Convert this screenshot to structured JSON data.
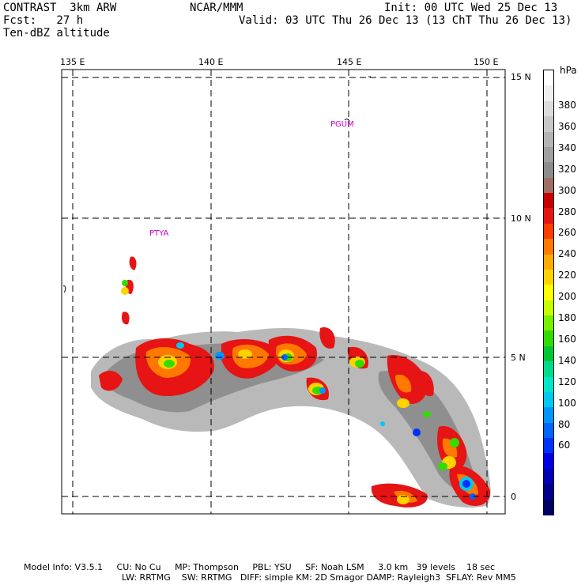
{
  "header": {
    "model": "CONTRAST  3km ARW",
    "fcst": "Fcst:   27 h",
    "field": "Ten-dBZ altitude",
    "org": "NCAR/MMM",
    "init": "Init: 00 UTC Wed 25 Dec 13",
    "valid": "Valid: 03 UTC Thu 26 Dec 13 (13 ChT Thu 26 Dec 13)"
  },
  "map": {
    "lon_labels": [
      "135 E",
      "140 E",
      "145 E",
      "150 E"
    ],
    "lat_labels": [
      "15 N",
      "10 N",
      "5 N",
      "0"
    ],
    "stations": [
      "PGUM",
      "PTYA"
    ]
  },
  "colorbar": {
    "unit": "hPa",
    "labels": [
      "380",
      "360",
      "340",
      "320",
      "300",
      "280",
      "260",
      "240",
      "220",
      "200",
      "180",
      "160",
      "140",
      "120",
      "100",
      "80",
      "60"
    ],
    "colors": [
      "#ffffff",
      "#eeeeee",
      "#dcdcdc",
      "#c8c8c8",
      "#b4b4b4",
      "#a0a0a0",
      "#8c8c8c",
      "#a06e64",
      "#c80000",
      "#e61414",
      "#ff3c00",
      "#ff7800",
      "#ffaa00",
      "#ffd200",
      "#ffff00",
      "#c8ff00",
      "#78f000",
      "#32dc00",
      "#00c832",
      "#00dc8c",
      "#00e6c8",
      "#00c8f0",
      "#0096ff",
      "#0064ff",
      "#0032ff",
      "#0000e6",
      "#0000b4",
      "#00008c",
      "#000064"
    ]
  },
  "footer": {
    "line1": "Model Info: V3.5.1     CU: No Cu     MP: Thompson     PBL: YSU     SF: Noah LSM     3.0 km   39 levels    18 sec",
    "line2": "LW: RRTMG    SW: RRTMG   DIFF: simple KM: 2D Smagor DAMP: Rayleigh3  SFLAY: Rev MM5"
  }
}
